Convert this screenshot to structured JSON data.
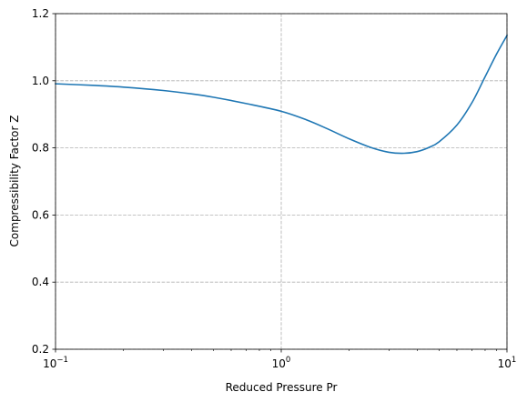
{
  "chart_data": {
    "type": "line",
    "title": "",
    "xlabel": "Reduced Pressure Pr",
    "ylabel": "Compressibility Factor Z",
    "xscale": "log",
    "xlim": [
      0.1,
      10
    ],
    "ylim": [
      0.2,
      1.2
    ],
    "grid": "dashed at major ticks",
    "x_ticks": [
      {
        "value": 0.1,
        "base": "10",
        "exp": "−1"
      },
      {
        "value": 1,
        "base": "10",
        "exp": "0"
      },
      {
        "value": 10,
        "base": "10",
        "exp": "1"
      }
    ],
    "y_ticks": [
      {
        "value": 0.2,
        "label": "0.2"
      },
      {
        "value": 0.4,
        "label": "0.4"
      },
      {
        "value": 0.6,
        "label": "0.6"
      },
      {
        "value": 0.8,
        "label": "0.8"
      },
      {
        "value": 1.0,
        "label": "1.0"
      },
      {
        "value": 1.2,
        "label": "1.2"
      }
    ],
    "series": [
      {
        "color": "#1f77b4",
        "x": [
          0.1,
          0.15,
          0.2,
          0.3,
          0.4,
          0.5,
          0.7,
          1.0,
          1.3,
          1.6,
          2.0,
          2.5,
          3.0,
          3.5,
          4.0,
          4.5,
          5.0,
          6.0,
          7.0,
          8.0,
          9.0,
          10.0
        ],
        "y": [
          0.991,
          0.986,
          0.981,
          0.971,
          0.961,
          0.951,
          0.932,
          0.909,
          0.883,
          0.857,
          0.827,
          0.801,
          0.787,
          0.784,
          0.789,
          0.801,
          0.818,
          0.868,
          0.935,
          1.012,
          1.08,
          1.135
        ]
      }
    ]
  }
}
